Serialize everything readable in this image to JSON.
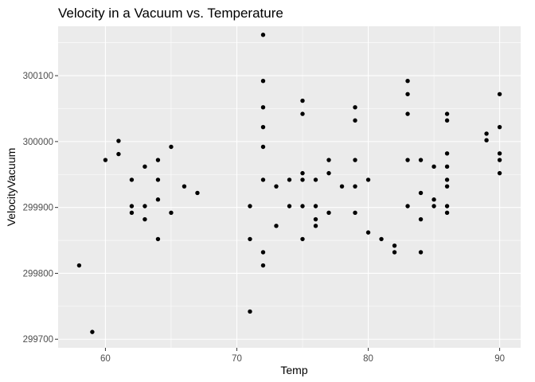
{
  "chart_data": {
    "type": "scatter",
    "title": "Velocity in a Vacuum vs. Temperature",
    "xlabel": "Temp",
    "ylabel": "VelocityVacuum",
    "xlim": [
      56.4,
      91.6
    ],
    "ylim": [
      299687,
      300175
    ],
    "x_ticks": [
      60,
      70,
      80,
      90
    ],
    "y_ticks": [
      299700,
      299800,
      299900,
      300000,
      300100
    ],
    "grid": true,
    "legend": "none",
    "colors": {
      "panel": "#ebebeb",
      "grid_major": "#ffffff",
      "point": "#000000"
    },
    "points": [
      {
        "x": 58,
        "y": 299812
      },
      {
        "x": 59,
        "y": 299711
      },
      {
        "x": 60,
        "y": 299972
      },
      {
        "x": 61,
        "y": 300001
      },
      {
        "x": 61,
        "y": 299981
      },
      {
        "x": 62,
        "y": 299942
      },
      {
        "x": 62,
        "y": 299902
      },
      {
        "x": 62,
        "y": 299892
      },
      {
        "x": 63,
        "y": 299962
      },
      {
        "x": 63,
        "y": 299902
      },
      {
        "x": 63,
        "y": 299882
      },
      {
        "x": 64,
        "y": 299972
      },
      {
        "x": 64,
        "y": 299942
      },
      {
        "x": 64,
        "y": 299912
      },
      {
        "x": 64,
        "y": 299852
      },
      {
        "x": 65,
        "y": 299992
      },
      {
        "x": 65,
        "y": 299892
      },
      {
        "x": 66,
        "y": 299932
      },
      {
        "x": 67,
        "y": 299922
      },
      {
        "x": 71,
        "y": 299902
      },
      {
        "x": 71,
        "y": 299852
      },
      {
        "x": 71,
        "y": 299742
      },
      {
        "x": 72,
        "y": 300162
      },
      {
        "x": 72,
        "y": 300092
      },
      {
        "x": 72,
        "y": 300052
      },
      {
        "x": 72,
        "y": 300022
      },
      {
        "x": 72,
        "y": 299992
      },
      {
        "x": 72,
        "y": 299942
      },
      {
        "x": 72,
        "y": 299832
      },
      {
        "x": 72,
        "y": 299812
      },
      {
        "x": 73,
        "y": 299932
      },
      {
        "x": 73,
        "y": 299872
      },
      {
        "x": 74,
        "y": 299942
      },
      {
        "x": 74,
        "y": 299902
      },
      {
        "x": 75,
        "y": 300062
      },
      {
        "x": 75,
        "y": 300042
      },
      {
        "x": 75,
        "y": 299952
      },
      {
        "x": 75,
        "y": 299942
      },
      {
        "x": 75,
        "y": 299902
      },
      {
        "x": 75,
        "y": 299852
      },
      {
        "x": 76,
        "y": 299942
      },
      {
        "x": 76,
        "y": 299902
      },
      {
        "x": 76,
        "y": 299882
      },
      {
        "x": 76,
        "y": 299872
      },
      {
        "x": 77,
        "y": 299972
      },
      {
        "x": 77,
        "y": 299952
      },
      {
        "x": 77,
        "y": 299892
      },
      {
        "x": 78,
        "y": 299932
      },
      {
        "x": 79,
        "y": 300052
      },
      {
        "x": 79,
        "y": 300032
      },
      {
        "x": 79,
        "y": 299972
      },
      {
        "x": 79,
        "y": 299932
      },
      {
        "x": 79,
        "y": 299892
      },
      {
        "x": 80,
        "y": 299942
      },
      {
        "x": 80,
        "y": 299862
      },
      {
        "x": 81,
        "y": 299852
      },
      {
        "x": 82,
        "y": 299842
      },
      {
        "x": 82,
        "y": 299832
      },
      {
        "x": 83,
        "y": 300092
      },
      {
        "x": 83,
        "y": 300072
      },
      {
        "x": 83,
        "y": 300042
      },
      {
        "x": 83,
        "y": 299972
      },
      {
        "x": 83,
        "y": 299902
      },
      {
        "x": 84,
        "y": 299972
      },
      {
        "x": 84,
        "y": 299922
      },
      {
        "x": 84,
        "y": 299882
      },
      {
        "x": 84,
        "y": 299832
      },
      {
        "x": 85,
        "y": 299962
      },
      {
        "x": 85,
        "y": 299912
      },
      {
        "x": 85,
        "y": 299902
      },
      {
        "x": 86,
        "y": 300042
      },
      {
        "x": 86,
        "y": 300032
      },
      {
        "x": 86,
        "y": 299982
      },
      {
        "x": 86,
        "y": 299962
      },
      {
        "x": 86,
        "y": 299942
      },
      {
        "x": 86,
        "y": 299932
      },
      {
        "x": 86,
        "y": 299902
      },
      {
        "x": 86,
        "y": 299892
      },
      {
        "x": 89,
        "y": 300012
      },
      {
        "x": 89,
        "y": 300002
      },
      {
        "x": 90,
        "y": 300072
      },
      {
        "x": 90,
        "y": 300022
      },
      {
        "x": 90,
        "y": 299982
      },
      {
        "x": 90,
        "y": 299972
      },
      {
        "x": 90,
        "y": 299952
      }
    ]
  }
}
